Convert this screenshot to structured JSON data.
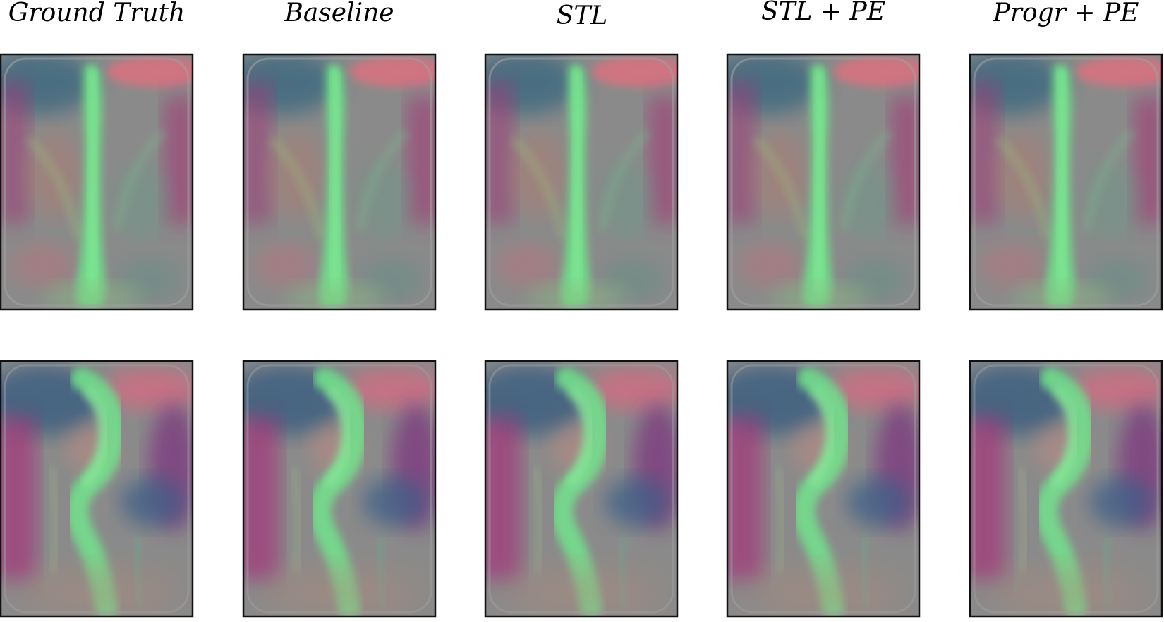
{
  "columns": [
    {
      "label": "Ground Truth"
    },
    {
      "label": "Baseline"
    },
    {
      "label": "STL"
    },
    {
      "label": "STL + PE"
    },
    {
      "label": "Progr + PE"
    }
  ],
  "rows": 2,
  "colors": {
    "background_gray": "#8c8c8c",
    "green_plume": "#6fe38a",
    "magenta": "#a8306f",
    "pink": "#d9707f",
    "teal_blue": "#3c5f86",
    "frame": "#111111"
  }
}
